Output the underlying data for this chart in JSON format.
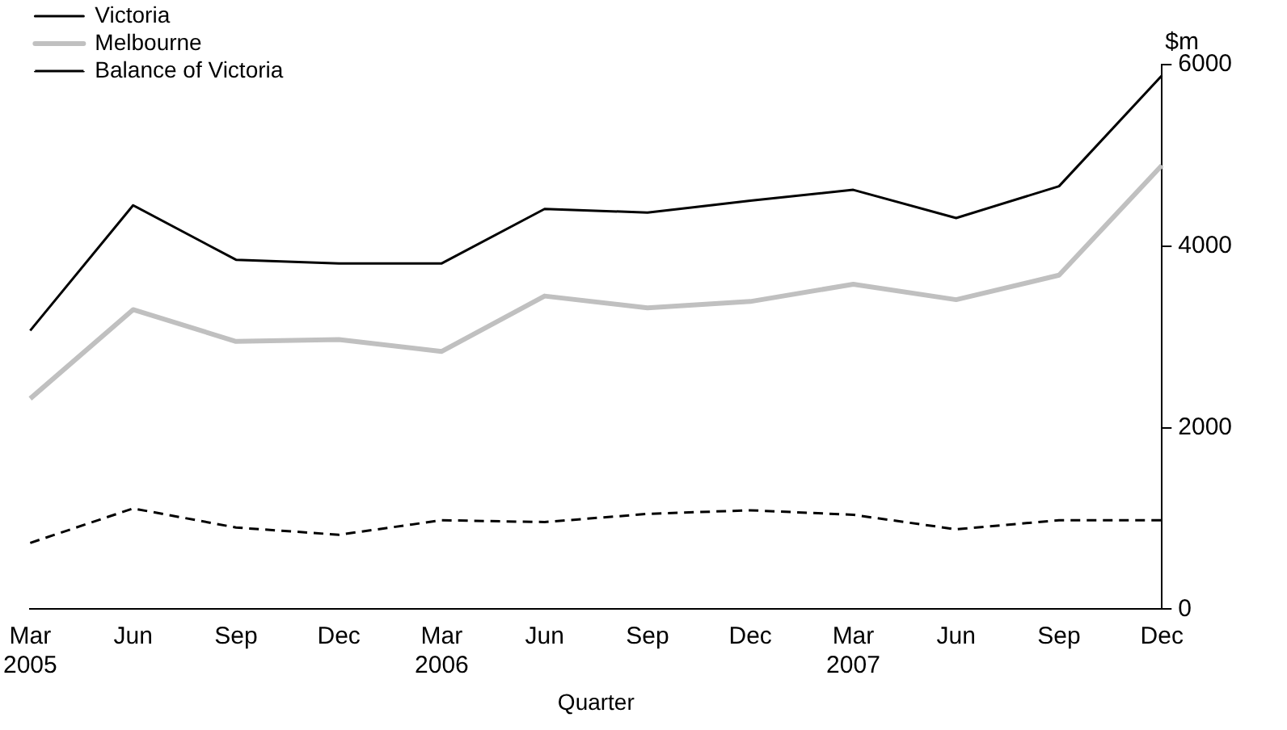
{
  "chart_data": {
    "type": "line",
    "xlabel": "Quarter",
    "ylabel": "$m",
    "categories": [
      "Mar\n2005",
      "Jun",
      "Sep",
      "Dec",
      "Mar\n2006",
      "Jun",
      "Sep",
      "Dec",
      "Mar\n2007",
      "Jun",
      "Sep",
      "Dec"
    ],
    "series": [
      {
        "name": "Victoria",
        "color": "#000000",
        "line_style": "solid",
        "values": [
          3070,
          4450,
          3850,
          3810,
          3810,
          4410,
          4370,
          4500,
          4620,
          4310,
          4660,
          5880
        ]
      },
      {
        "name": "Melbourne",
        "color": "#c0c0c0",
        "line_style": "solid",
        "values": [
          2320,
          3300,
          2950,
          2970,
          2840,
          3450,
          3320,
          3390,
          3580,
          3410,
          3680,
          4890
        ]
      },
      {
        "name": "Balance of Victoria",
        "color": "#000000",
        "line_style": "dashed",
        "values": [
          730,
          1110,
          900,
          820,
          980,
          960,
          1050,
          1090,
          1040,
          880,
          980,
          980
        ]
      }
    ],
    "ylim": [
      0,
      6000
    ],
    "yticks": [
      0,
      2000,
      4000,
      6000
    ],
    "grid": false,
    "legend": "top left",
    "marker": "none"
  }
}
